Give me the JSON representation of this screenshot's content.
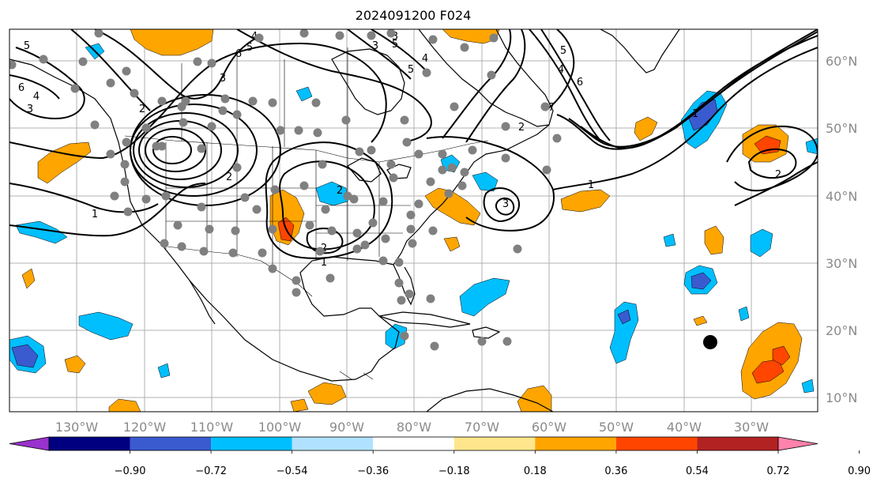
{
  "title": "2024091200 F024",
  "longitude_labels": [
    "130°W",
    "120°W",
    "110°W",
    "100°W",
    "90°W",
    "80°W",
    "70°W",
    "60°W",
    "50°W",
    "40°W",
    "30°W"
  ],
  "latitude_labels": [
    "60°N",
    "50°N",
    "40°N",
    "30°N",
    "20°N",
    "10°N"
  ],
  "contour_labels": [
    "5",
    "6",
    "4",
    "3",
    "2",
    "6",
    "5",
    "4",
    "1",
    "3",
    "2",
    "5",
    "4",
    "2",
    "1",
    "3",
    "2",
    "1",
    "3",
    "1",
    "4",
    "5",
    "6",
    "7",
    "5",
    "3",
    "2",
    "2"
  ],
  "colorbar": {
    "tick_labels": [
      "−0.90",
      "−0.72",
      "−0.54",
      "−0.36",
      "−0.18",
      "0.18",
      "0.36",
      "0.54",
      "0.72",
      "0.90"
    ],
    "colors": [
      "#9a32cd",
      "#000080",
      "#3a5bd0",
      "#00bfff",
      "#b0e2ff",
      "#ffffff",
      "#ffe68c",
      "#ffa500",
      "#ff4500",
      "#b22222",
      "#ff82ab"
    ]
  },
  "fill_colors": {
    "light_blue": "#00bfff",
    "mid_blue": "#3a5bd0",
    "orange": "#ffa500",
    "red_orange": "#ff4500"
  },
  "markers": {
    "station_color": "#808080",
    "storm_color": "#000000"
  }
}
